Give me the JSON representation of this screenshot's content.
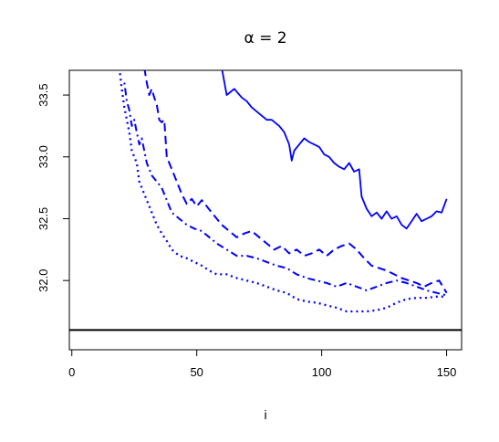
{
  "chart_data": {
    "type": "line",
    "title": "α = 2",
    "xlabel": "i",
    "ylabel": "",
    "xlim": [
      -1,
      156
    ],
    "ylim": [
      31.44,
      33.7
    ],
    "xticks": [
      0,
      50,
      100,
      150
    ],
    "xtick_labels": [
      "0",
      "50",
      "100",
      "150"
    ],
    "yticks": [
      32.0,
      32.5,
      33.0,
      33.5
    ],
    "ytick_labels": [
      "32.0",
      "32.5",
      "33.0",
      "33.5"
    ],
    "grid": false,
    "legend": "none",
    "color": "#0000ff",
    "reference_line": {
      "y": 31.6,
      "color": "#000000"
    },
    "series": [
      {
        "style": "solid",
        "x": [
          60,
          62,
          65,
          68,
          70,
          72,
          75,
          78,
          80,
          83,
          85,
          87,
          88,
          89,
          91,
          93,
          95,
          97,
          99,
          101,
          103,
          105,
          107,
          109,
          111,
          113,
          115,
          116,
          118,
          120,
          122,
          124,
          126,
          128,
          130,
          132,
          134,
          136,
          138,
          140,
          142,
          144,
          146,
          148,
          150
        ],
        "y": [
          33.72,
          33.5,
          33.55,
          33.48,
          33.45,
          33.4,
          33.35,
          33.3,
          33.3,
          33.25,
          33.2,
          33.1,
          32.97,
          33.05,
          33.1,
          33.15,
          33.12,
          33.1,
          33.08,
          33.02,
          33.0,
          32.95,
          32.92,
          32.9,
          32.95,
          32.88,
          32.9,
          32.68,
          32.58,
          32.52,
          32.55,
          32.5,
          32.56,
          32.5,
          32.52,
          32.45,
          32.42,
          32.48,
          32.54,
          32.48,
          32.5,
          32.52,
          32.56,
          32.55,
          32.66
        ]
      },
      {
        "style": "dashed",
        "x": [
          29,
          30,
          31,
          32,
          33,
          34,
          35,
          36,
          37,
          38,
          40,
          42,
          44,
          46,
          48,
          50,
          52,
          54,
          56,
          58,
          60,
          63,
          66,
          69,
          72,
          75,
          78,
          81,
          84,
          87,
          90,
          93,
          96,
          99,
          102,
          105,
          108,
          111,
          114,
          117,
          120,
          123,
          126,
          129,
          132,
          135,
          138,
          141,
          144,
          147,
          150
        ],
        "y": [
          33.72,
          33.6,
          33.5,
          33.55,
          33.48,
          33.42,
          33.3,
          33.28,
          33.3,
          33.0,
          32.9,
          32.8,
          32.7,
          32.62,
          32.66,
          32.6,
          32.65,
          32.6,
          32.55,
          32.5,
          32.45,
          32.4,
          32.35,
          32.38,
          32.4,
          32.35,
          32.3,
          32.25,
          32.28,
          32.22,
          32.25,
          32.2,
          32.22,
          32.25,
          32.2,
          32.25,
          32.28,
          32.3,
          32.25,
          32.18,
          32.12,
          32.1,
          32.08,
          32.05,
          32.02,
          32.0,
          31.98,
          31.95,
          31.98,
          32.0,
          31.9
        ]
      },
      {
        "style": "dotdash",
        "x": [
          21,
          22,
          23,
          24,
          25,
          26,
          27,
          28,
          30,
          32,
          34,
          36,
          38,
          40,
          43,
          46,
          49,
          52,
          55,
          58,
          62,
          66,
          70,
          74,
          78,
          82,
          86,
          90,
          94,
          98,
          102,
          106,
          110,
          114,
          118,
          122,
          126,
          130,
          134,
          138,
          142,
          146,
          150
        ],
        "y": [
          33.6,
          33.45,
          33.38,
          33.25,
          33.3,
          33.2,
          33.1,
          33.15,
          32.95,
          32.85,
          32.8,
          32.75,
          32.65,
          32.55,
          32.5,
          32.45,
          32.42,
          32.4,
          32.35,
          32.3,
          32.25,
          32.2,
          32.2,
          32.18,
          32.15,
          32.12,
          32.1,
          32.05,
          32.02,
          32.0,
          31.98,
          31.95,
          31.98,
          31.95,
          31.92,
          31.95,
          31.98,
          32.0,
          31.98,
          31.95,
          31.92,
          31.9,
          31.88
        ]
      },
      {
        "style": "dotted",
        "x": [
          19,
          20,
          21,
          22,
          23,
          24,
          25,
          26,
          27,
          28,
          30,
          32,
          34,
          36,
          38,
          40,
          43,
          46,
          49,
          52,
          55,
          58,
          62,
          66,
          70,
          74,
          78,
          82,
          86,
          90,
          94,
          98,
          102,
          106,
          110,
          114,
          118,
          122,
          126,
          130,
          134,
          138,
          142,
          146,
          150
        ],
        "y": [
          33.72,
          33.55,
          33.4,
          33.3,
          33.2,
          33.05,
          33.0,
          32.95,
          32.8,
          32.75,
          32.65,
          32.55,
          32.45,
          32.38,
          32.32,
          32.25,
          32.2,
          32.18,
          32.15,
          32.12,
          32.08,
          32.05,
          32.05,
          32.02,
          32.0,
          31.98,
          31.95,
          31.92,
          31.9,
          31.85,
          31.83,
          31.82,
          31.8,
          31.78,
          31.75,
          31.75,
          31.75,
          31.76,
          31.78,
          31.82,
          31.85,
          31.86,
          31.86,
          31.87,
          31.87
        ]
      }
    ]
  }
}
